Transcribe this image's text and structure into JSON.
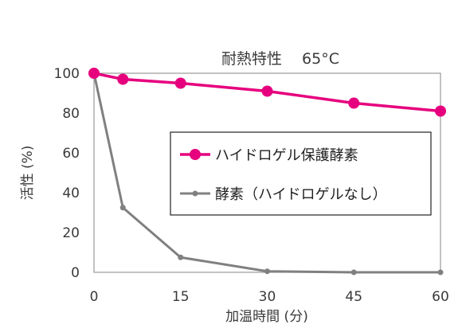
{
  "chart_data": {
    "type": "line",
    "title": "耐熱特性　 65°C",
    "xlabel": "加温時間 (分)",
    "ylabel": "活性 (%)",
    "xlim": [
      0,
      60
    ],
    "ylim": [
      0,
      100
    ],
    "xticks": [
      0,
      15,
      30,
      45,
      60
    ],
    "yticks": [
      0,
      20,
      40,
      60,
      80,
      100
    ],
    "grid": false,
    "legend_position": "center-right",
    "series": [
      {
        "name": "ハイドロゲル保護酵素",
        "color": "#e6007e",
        "x": [
          0,
          5,
          15,
          30,
          45,
          60
        ],
        "y": [
          100,
          97,
          95,
          91,
          85,
          81
        ]
      },
      {
        "name": "酵素（ハイドロゲルなし）",
        "color": "#808080",
        "x": [
          0,
          5,
          15,
          30,
          45,
          60
        ],
        "y": [
          100,
          32.5,
          7.5,
          0.5,
          0,
          0
        ]
      }
    ]
  }
}
